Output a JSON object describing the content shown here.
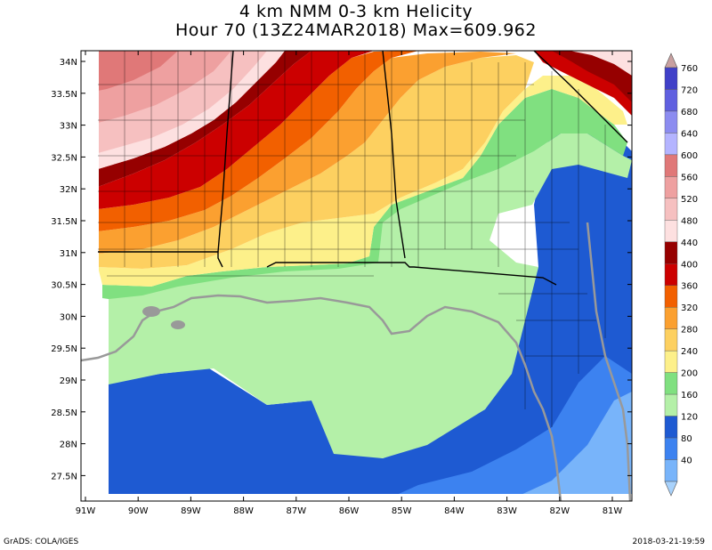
{
  "title": {
    "line1": "4 km NMM 0-3 km Helicity",
    "line2": "Hour 70 (13Z24MAR2018) Max=609.962"
  },
  "map": {
    "lon_range": [
      -91,
      -80.8
    ],
    "lat_range": [
      27,
      34.1
    ],
    "lon_ticks": [
      "91W",
      "90W",
      "89W",
      "88W",
      "87W",
      "86W",
      "85W",
      "84W",
      "83W",
      "82W",
      "81W"
    ],
    "lat_ticks": [
      "34N",
      "33.5N",
      "33N",
      "32.5N",
      "32N",
      "31.5N",
      "31N",
      "30.5N",
      "30N",
      "29.5N",
      "29N",
      "28.5N",
      "28N",
      "27.5N"
    ]
  },
  "colorbar": {
    "labels": [
      "760",
      "720",
      "680",
      "640",
      "600",
      "560",
      "520",
      "480",
      "440",
      "400",
      "360",
      "320",
      "280",
      "240",
      "200",
      "160",
      "120",
      "80",
      "40"
    ],
    "colors": [
      "#c8a0a0",
      "#4040c8",
      "#6060e0",
      "#8c8cf0",
      "#b4b4ff",
      "#e07878",
      "#eea0a0",
      "#f6c0c0",
      "#fde0e0",
      "#960000",
      "#cc0000",
      "#f26000",
      "#fba030",
      "#fdd060",
      "#fdf08a",
      "#80e080",
      "#b4f0a8",
      "#1e5ad2",
      "#3c82f0",
      "#78b4fa",
      "#a8d2fc"
    ]
  },
  "footer": {
    "left": "GrADS: COLA/IGES",
    "right": "2018-03-21-19:59"
  },
  "colors": {
    "background": "#ffffff",
    "state_border": "#000000",
    "county_border": "#000000",
    "coast": "#999999"
  }
}
